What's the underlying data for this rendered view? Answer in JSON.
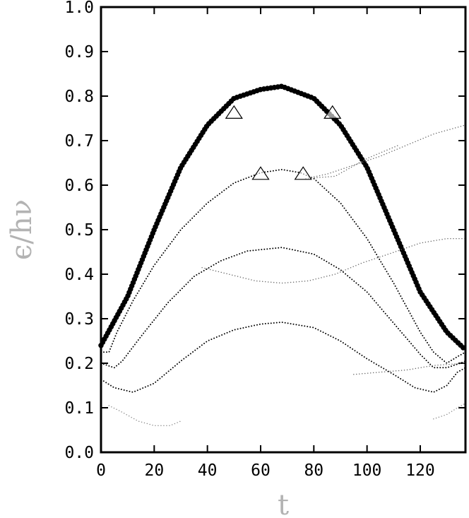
{
  "chart_data": {
    "type": "scatter",
    "xlabel": "t",
    "ylabel": "ϵ/hν",
    "xlim": [
      0,
      137
    ],
    "ylim": [
      0.0,
      1.0
    ],
    "x_ticks": [
      "0",
      "20",
      "40",
      "60",
      "80",
      "100",
      "120"
    ],
    "y_ticks": [
      "0.0",
      "0.1",
      "0.2",
      "0.3",
      "0.4",
      "0.5",
      "0.6",
      "0.7",
      "0.8",
      "0.9",
      "1.0"
    ],
    "grid": false,
    "series": [
      {
        "style": "large-dots",
        "color": "#000000",
        "points": [
          [
            0,
            0.24
          ],
          [
            10,
            0.35
          ],
          [
            20,
            0.5
          ],
          [
            30,
            0.64
          ],
          [
            40,
            0.735
          ],
          [
            50,
            0.795
          ],
          [
            60,
            0.815
          ],
          [
            68,
            0.822
          ],
          [
            80,
            0.795
          ],
          [
            90,
            0.735
          ],
          [
            100,
            0.64
          ],
          [
            110,
            0.5
          ],
          [
            120,
            0.36
          ],
          [
            130,
            0.27
          ],
          [
            137,
            0.23
          ]
        ]
      },
      {
        "style": "dotted",
        "color": "#000000",
        "points": [
          [
            0,
            0.225
          ],
          [
            3,
            0.225
          ],
          [
            6,
            0.27
          ],
          [
            12,
            0.34
          ],
          [
            20,
            0.42
          ],
          [
            30,
            0.5
          ],
          [
            40,
            0.56
          ],
          [
            50,
            0.605
          ],
          [
            60,
            0.628
          ],
          [
            68,
            0.635
          ],
          [
            75,
            0.628
          ],
          [
            80,
            0.615
          ],
          [
            90,
            0.56
          ],
          [
            100,
            0.48
          ],
          [
            110,
            0.38
          ],
          [
            120,
            0.27
          ],
          [
            125,
            0.225
          ],
          [
            130,
            0.2
          ],
          [
            134,
            0.215
          ],
          [
            137,
            0.225
          ]
        ]
      },
      {
        "style": "dotted",
        "color": "#000000",
        "points": [
          [
            0,
            0.2
          ],
          [
            5,
            0.19
          ],
          [
            8,
            0.205
          ],
          [
            15,
            0.26
          ],
          [
            25,
            0.335
          ],
          [
            35,
            0.395
          ],
          [
            45,
            0.43
          ],
          [
            55,
            0.452
          ],
          [
            68,
            0.46
          ],
          [
            80,
            0.445
          ],
          [
            90,
            0.41
          ],
          [
            100,
            0.36
          ],
          [
            110,
            0.29
          ],
          [
            120,
            0.22
          ],
          [
            125,
            0.19
          ],
          [
            130,
            0.19
          ],
          [
            135,
            0.2
          ],
          [
            137,
            0.205
          ]
        ]
      },
      {
        "style": "dotted",
        "color": "#000000",
        "points": [
          [
            1,
            0.16
          ],
          [
            5,
            0.145
          ],
          [
            12,
            0.135
          ],
          [
            20,
            0.155
          ],
          [
            30,
            0.205
          ],
          [
            40,
            0.25
          ],
          [
            50,
            0.275
          ],
          [
            60,
            0.288
          ],
          [
            68,
            0.292
          ],
          [
            80,
            0.28
          ],
          [
            90,
            0.25
          ],
          [
            100,
            0.21
          ],
          [
            110,
            0.175
          ],
          [
            118,
            0.145
          ],
          [
            125,
            0.135
          ],
          [
            130,
            0.15
          ],
          [
            134,
            0.18
          ],
          [
            137,
            0.19
          ]
        ]
      },
      {
        "style": "faint-dotted",
        "color": "#666666",
        "points": [
          [
            77,
            0.615
          ],
          [
            85,
            0.625
          ],
          [
            95,
            0.645
          ],
          [
            105,
            0.665
          ],
          [
            115,
            0.69
          ],
          [
            125,
            0.715
          ],
          [
            137,
            0.735
          ]
        ]
      },
      {
        "style": "faint-dotted",
        "color": "#666666",
        "points": [
          [
            77,
            0.615
          ],
          [
            88,
            0.62
          ],
          [
            100,
            0.66
          ],
          [
            112,
            0.69
          ]
        ]
      },
      {
        "style": "faint-dotted",
        "color": "#666666",
        "points": [
          [
            38,
            0.415
          ],
          [
            48,
            0.4
          ],
          [
            58,
            0.385
          ],
          [
            68,
            0.38
          ],
          [
            78,
            0.385
          ],
          [
            88,
            0.4
          ],
          [
            98,
            0.425
          ],
          [
            108,
            0.445
          ],
          [
            120,
            0.47
          ],
          [
            130,
            0.48
          ],
          [
            137,
            0.48
          ]
        ]
      },
      {
        "style": "faint-dotted",
        "color": "#666666",
        "points": [
          [
            95,
            0.175
          ],
          [
            105,
            0.18
          ],
          [
            115,
            0.185
          ],
          [
            125,
            0.195
          ],
          [
            137,
            0.2
          ]
        ]
      },
      {
        "style": "faint-dotted",
        "color": "#888888",
        "points": [
          [
            3,
            0.105
          ],
          [
            8,
            0.09
          ],
          [
            14,
            0.07
          ],
          [
            20,
            0.06
          ],
          [
            26,
            0.06
          ],
          [
            30,
            0.07
          ]
        ]
      },
      {
        "style": "faint-dotted",
        "color": "#888888",
        "points": [
          [
            125,
            0.075
          ],
          [
            130,
            0.085
          ],
          [
            134,
            0.1
          ],
          [
            137,
            0.11
          ]
        ]
      }
    ],
    "markers": {
      "shape": "open-triangle",
      "points": [
        [
          50,
          0.762
        ],
        [
          87,
          0.762
        ],
        [
          60,
          0.625
        ],
        [
          76,
          0.625
        ]
      ]
    }
  }
}
